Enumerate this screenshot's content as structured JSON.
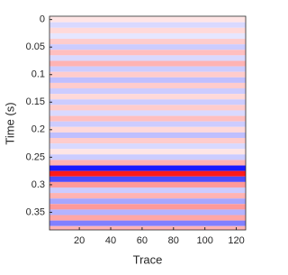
{
  "chart_data": {
    "type": "image",
    "xlabel": "Trace",
    "ylabel": "Time (s)",
    "y": [
      0,
      0.01,
      0.02,
      0.03,
      0.04,
      0.05,
      0.06,
      0.07,
      0.08,
      0.09,
      0.1,
      0.11,
      0.12,
      0.13,
      0.14,
      0.15,
      0.16,
      0.17,
      0.18,
      0.19,
      0.2,
      0.21,
      0.22,
      0.23,
      0.24,
      0.25,
      0.26,
      0.27,
      0.28,
      0.29,
      0.3,
      0.31,
      0.32,
      0.33,
      0.34,
      0.35,
      0.36,
      0.37,
      0.38
    ],
    "values": [
      0.1,
      -0.15,
      0.15,
      -0.1,
      0.2,
      -0.2,
      0.25,
      -0.15,
      0.3,
      -0.2,
      0.2,
      -0.25,
      0.2,
      -0.2,
      0.15,
      -0.2,
      0.2,
      -0.15,
      0.25,
      -0.2,
      0.15,
      -0.25,
      0.2,
      -0.15,
      0.1,
      -0.2,
      0.3,
      -0.9,
      0.9,
      -0.7,
      0.4,
      -0.2,
      0.3,
      -0.35,
      0.4,
      -0.3,
      0.35,
      -0.5,
      0.3
    ],
    "row_height": 0.01,
    "clim": [
      -1,
      1
    ],
    "colormap": {
      "negative": "#0000ff",
      "zero": "#ffffff",
      "positive": "#ff0000"
    },
    "xlim": [
      1,
      126
    ],
    "xticks": [
      20,
      40,
      60,
      80,
      100,
      120
    ],
    "ylim": [
      -0.006,
      0.382
    ],
    "yticks": [
      0,
      0.05,
      0.1,
      0.15,
      0.2,
      0.25,
      0.3,
      0.35
    ],
    "y_reversed": true
  }
}
